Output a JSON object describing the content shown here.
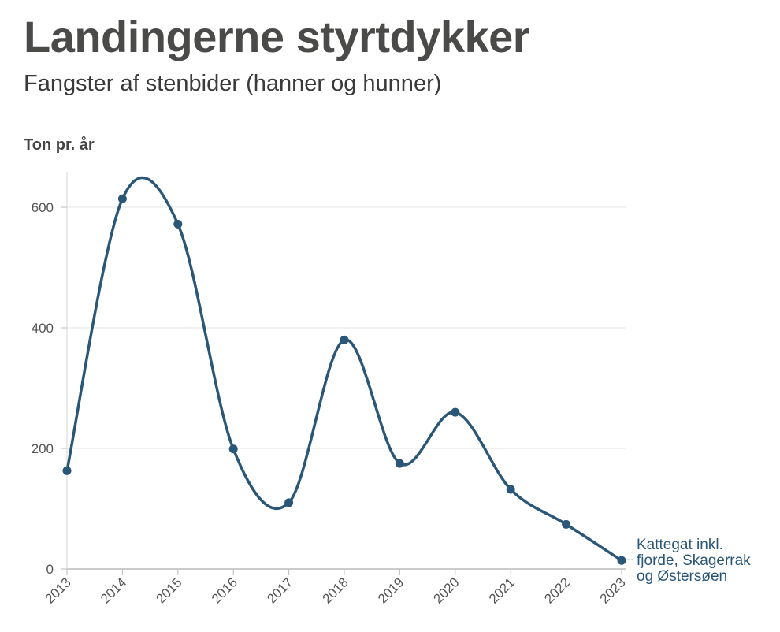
{
  "title": "Landingerne styrtdykker",
  "subtitle": "Fangster af stenbider (hanner og hunner)",
  "unit_label": "Ton pr. år",
  "colors": {
    "line": "#2a5678",
    "grid": "#e4e4e4",
    "axis": "#bbbbbb",
    "title": "#4a4a48",
    "tick_text": "#555555"
  },
  "chart_data": {
    "type": "line",
    "title": "Landingerne styrtdykker",
    "subtitle": "Fangster af stenbider (hanner og hunner)",
    "ylabel": "Ton pr. år",
    "xlabel": "",
    "x": [
      "2013",
      "2014",
      "2015",
      "2016",
      "2017",
      "2018",
      "2019",
      "2020",
      "2021",
      "2022",
      "2023"
    ],
    "yticks": [
      "0",
      "200",
      "400",
      "600"
    ],
    "ylim": [
      0,
      650
    ],
    "grid": true,
    "series": [
      {
        "name": "Kattegat inkl. fjorde, Skagerrak og Østersøen",
        "label_lines": [
          "Kattegat inkl.",
          "fjorde, Skagerrak",
          "og Østersøen"
        ],
        "values": [
          163,
          614,
          572,
          199,
          110,
          380,
          175,
          260,
          132,
          74,
          14
        ]
      }
    ]
  }
}
